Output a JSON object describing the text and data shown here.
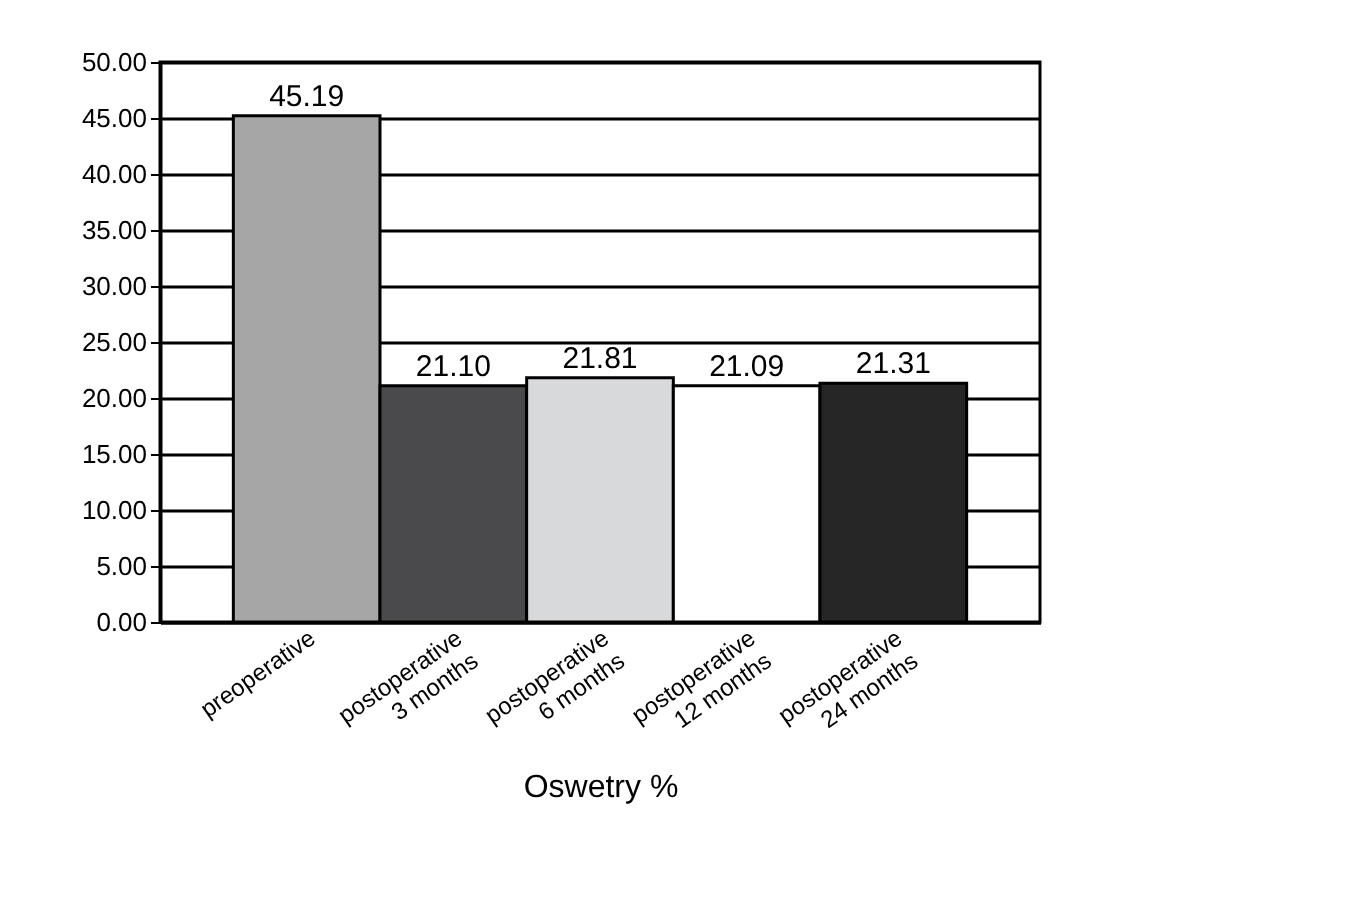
{
  "chart_data": {
    "type": "bar",
    "xlabel": "Oswetry %",
    "categories": [
      "preoperative",
      "postoperative\n3 months",
      "postoperative\n6 months",
      "postoperative\n12 months",
      "postoperative\n24 months"
    ],
    "values": [
      45.19,
      21.1,
      21.81,
      21.09,
      21.31
    ],
    "value_labels": [
      "45.19",
      "21.10",
      "21.81",
      "21.09",
      "21.31"
    ],
    "colors": [
      "#a6a6a6",
      "#4a4a4c",
      "#d8d9db",
      "#ffffff",
      "#262626"
    ],
    "ylim": [
      0,
      50
    ],
    "yticks": [
      {
        "value": 0,
        "label": "0.00"
      },
      {
        "value": 5,
        "label": "5.00"
      },
      {
        "value": 10,
        "label": "10.00"
      },
      {
        "value": 15,
        "label": "15.00"
      },
      {
        "value": 20,
        "label": "20.00"
      },
      {
        "value": 25,
        "label": "25.00"
      },
      {
        "value": 30,
        "label": "30.00"
      },
      {
        "value": 35,
        "label": "35.00"
      },
      {
        "value": 40,
        "label": "40.00"
      },
      {
        "value": 45,
        "label": "45.00"
      },
      {
        "value": 50,
        "label": "50.00"
      }
    ],
    "grid": "y"
  }
}
